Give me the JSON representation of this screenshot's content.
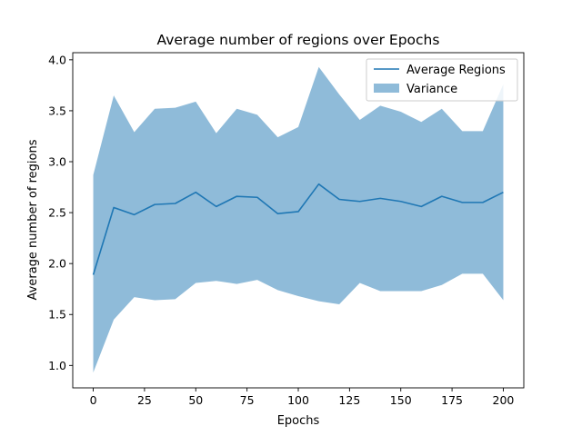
{
  "chart_data": {
    "type": "line",
    "title": "Average number of regions over Epochs",
    "xlabel": "Epochs",
    "ylabel": "Average number of regions",
    "xlim": [
      -10,
      210
    ],
    "ylim": [
      0.78,
      4.07
    ],
    "xticks": [
      0,
      25,
      50,
      75,
      100,
      125,
      150,
      175,
      200
    ],
    "yticks": [
      1.0,
      1.5,
      2.0,
      2.5,
      3.0,
      3.5,
      4.0
    ],
    "grid": false,
    "legend_position": "top-right",
    "x": [
      0,
      10,
      20,
      30,
      40,
      50,
      60,
      70,
      80,
      90,
      100,
      110,
      120,
      130,
      140,
      150,
      160,
      170,
      180,
      190,
      200
    ],
    "series": [
      {
        "name": "Average Regions",
        "kind": "line",
        "color": "#1f77b4",
        "values": [
          1.89,
          2.55,
          2.48,
          2.58,
          2.59,
          2.7,
          2.56,
          2.66,
          2.65,
          2.49,
          2.51,
          2.78,
          2.63,
          2.61,
          2.64,
          2.61,
          2.56,
          2.66,
          2.6,
          2.6,
          2.7
        ]
      },
      {
        "name": "Variance",
        "kind": "band",
        "color": "#1f77b4",
        "upper": [
          2.87,
          3.65,
          3.29,
          3.52,
          3.53,
          3.59,
          3.28,
          3.52,
          3.46,
          3.24,
          3.34,
          3.93,
          3.66,
          3.41,
          3.55,
          3.49,
          3.39,
          3.52,
          3.3,
          3.3,
          3.76
        ],
        "lower": [
          0.93,
          1.45,
          1.67,
          1.64,
          1.65,
          1.81,
          1.83,
          1.8,
          1.84,
          1.74,
          1.68,
          1.63,
          1.6,
          1.81,
          1.73,
          1.73,
          1.73,
          1.79,
          1.9,
          1.9,
          1.64
        ]
      }
    ]
  }
}
